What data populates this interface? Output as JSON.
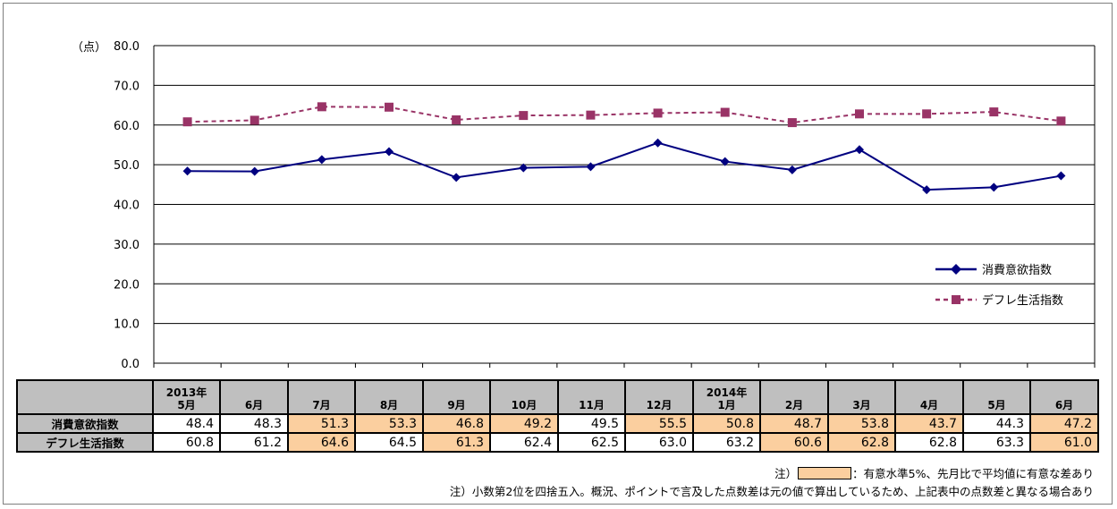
{
  "chart_data": {
    "type": "line",
    "unit_label": "（点）",
    "ylim": [
      0,
      80
    ],
    "y_ticks": [
      "0.0",
      "10.0",
      "20.0",
      "30.0",
      "40.0",
      "50.0",
      "60.0",
      "70.0",
      "80.0"
    ],
    "categories": [
      "2013年5月",
      "6月",
      "7月",
      "8月",
      "9月",
      "10月",
      "11月",
      "12月",
      "2014年1月",
      "2月",
      "3月",
      "4月",
      "5月",
      "6月"
    ],
    "series": [
      {
        "name": "消費意欲指数",
        "values": [
          48.4,
          48.3,
          51.3,
          53.3,
          46.8,
          49.2,
          49.5,
          55.5,
          50.8,
          48.7,
          53.8,
          43.7,
          44.3,
          47.2
        ],
        "color": "#000080",
        "marker": "diamond",
        "style": "solid"
      },
      {
        "name": "デフレ生活指数",
        "values": [
          60.8,
          61.2,
          64.6,
          64.5,
          61.3,
          62.4,
          62.5,
          63.0,
          63.2,
          60.6,
          62.8,
          62.8,
          63.3,
          61.0
        ],
        "color": "#993366",
        "marker": "square",
        "style": "dashed"
      }
    ],
    "legend_position": "right",
    "grid": true
  },
  "table": {
    "headers": [
      [
        "2013年",
        "5月"
      ],
      [
        "",
        "6月"
      ],
      [
        "",
        "7月"
      ],
      [
        "",
        "8月"
      ],
      [
        "",
        "9月"
      ],
      [
        "",
        "10月"
      ],
      [
        "",
        "11月"
      ],
      [
        "",
        "12月"
      ],
      [
        "2014年",
        "1月"
      ],
      [
        "",
        "2月"
      ],
      [
        "",
        "3月"
      ],
      [
        "",
        "4月"
      ],
      [
        "",
        "5月"
      ],
      [
        "",
        "6月"
      ]
    ],
    "rows": [
      {
        "label": "消費意欲指数",
        "cells": [
          "48.4",
          "48.3",
          "51.3",
          "53.3",
          "46.8",
          "49.2",
          "49.5",
          "55.5",
          "50.8",
          "48.7",
          "53.8",
          "43.7",
          "44.3",
          "47.2"
        ],
        "highlight": [
          false,
          false,
          true,
          true,
          true,
          true,
          false,
          true,
          true,
          true,
          true,
          true,
          false,
          true
        ]
      },
      {
        "label": "デフレ生活指数",
        "cells": [
          "60.8",
          "61.2",
          "64.6",
          "64.5",
          "61.3",
          "62.4",
          "62.5",
          "63.0",
          "63.2",
          "60.6",
          "62.8",
          "62.8",
          "63.3",
          "61.0"
        ],
        "highlight": [
          false,
          false,
          true,
          false,
          true,
          false,
          false,
          false,
          false,
          true,
          true,
          false,
          false,
          true
        ]
      }
    ]
  },
  "notes": {
    "note1_prefix": "注）",
    "note1_text": "：有意水準5%、先月比で平均値に有意な差あり",
    "note2": "注）小数第2位を四捨五入。概況、ポイントで言及した点数差は元の値で算出しているため、上記表中の点数差と異なる場合あり"
  },
  "colors": {
    "highlight": "#fbcf9f",
    "header_bg": "#bfbfbf",
    "gridline": "#000000"
  }
}
